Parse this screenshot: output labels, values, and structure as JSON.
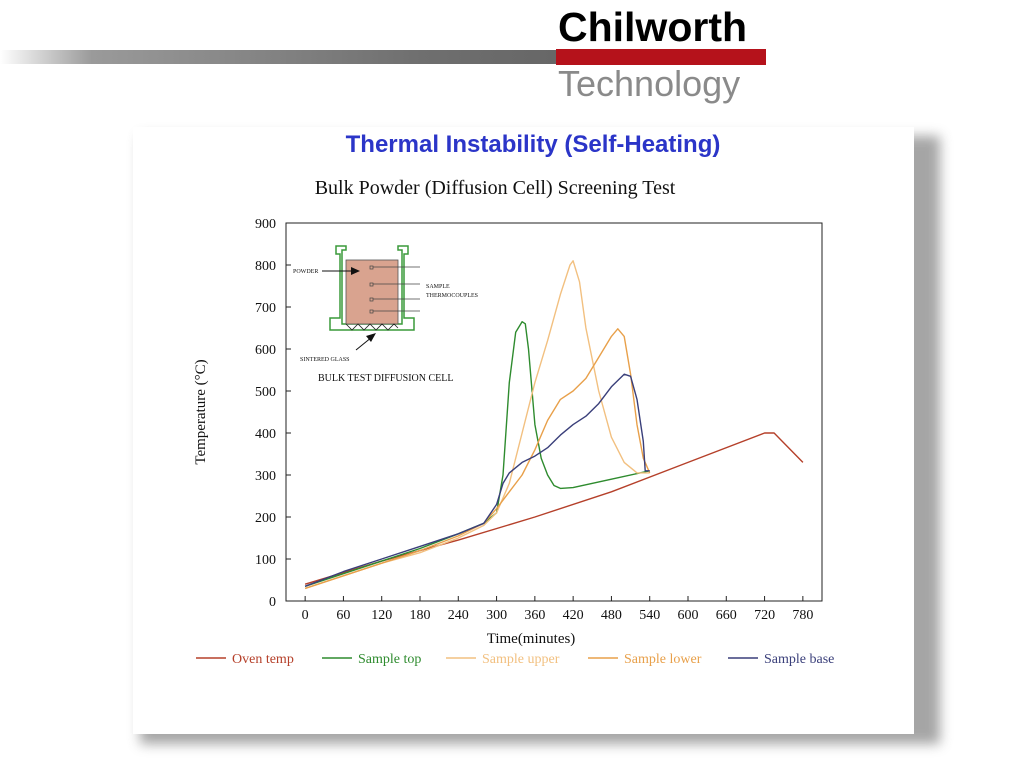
{
  "brand": {
    "name": "Chilworth",
    "sub": "Technology",
    "accent": "#b5121b"
  },
  "slide_title": "Thermal Instability (Self-Heating)",
  "inset": {
    "labels": {
      "powder": "POWDER",
      "sample": "SAMPLE",
      "thermocouples": "THERMOCOUPLES",
      "sintered": "SINTERED GLASS",
      "caption": "BULK TEST DIFFUSION CELL"
    }
  },
  "chart_data": {
    "type": "line",
    "title": "Bulk Powder (Diffusion Cell) Screening Test",
    "xlabel": "Time(minutes)",
    "ylabel": "Temperature (°C)",
    "xlim": [
      -30,
      810
    ],
    "ylim": [
      0,
      900
    ],
    "xticks": [
      0,
      60,
      120,
      180,
      240,
      300,
      360,
      420,
      480,
      540,
      600,
      660,
      720,
      780
    ],
    "yticks": [
      0,
      100,
      200,
      300,
      400,
      500,
      600,
      700,
      800,
      900
    ],
    "legend_position": "bottom",
    "series": [
      {
        "name": "Oven temp",
        "color": "#b5402a",
        "x": [
          0,
          120,
          240,
          360,
          480,
          600,
          720,
          735,
          780
        ],
        "y": [
          40,
          95,
          145,
          200,
          260,
          330,
          400,
          400,
          330
        ]
      },
      {
        "name": "Sample top",
        "color": "#2e8b2e",
        "x": [
          0,
          60,
          120,
          180,
          240,
          280,
          300,
          310,
          320,
          330,
          340,
          345,
          350,
          360,
          370,
          380,
          390,
          400,
          420,
          480,
          540
        ],
        "y": [
          35,
          65,
          95,
          125,
          160,
          185,
          210,
          300,
          520,
          640,
          665,
          660,
          600,
          420,
          340,
          300,
          275,
          268,
          270,
          290,
          310
        ]
      },
      {
        "name": "Sample upper",
        "color": "#f2c080",
        "x": [
          0,
          60,
          120,
          180,
          240,
          280,
          300,
          320,
          340,
          360,
          380,
          400,
          415,
          420,
          430,
          440,
          460,
          480,
          500,
          520,
          540
        ],
        "y": [
          30,
          60,
          90,
          115,
          150,
          180,
          210,
          280,
          400,
          520,
          620,
          730,
          800,
          810,
          760,
          650,
          500,
          390,
          330,
          305,
          305
        ]
      },
      {
        "name": "Sample lower",
        "color": "#e8a04a",
        "x": [
          0,
          60,
          120,
          180,
          240,
          280,
          300,
          320,
          340,
          360,
          380,
          400,
          420,
          440,
          460,
          480,
          490,
          500,
          510,
          520,
          530,
          540
        ],
        "y": [
          30,
          60,
          90,
          120,
          155,
          185,
          220,
          260,
          300,
          360,
          430,
          480,
          500,
          530,
          580,
          630,
          648,
          630,
          540,
          420,
          340,
          305
        ]
      },
      {
        "name": "Sample base",
        "color": "#3a3f7a",
        "x": [
          0,
          60,
          120,
          180,
          240,
          280,
          300,
          310,
          320,
          340,
          360,
          380,
          400,
          420,
          440,
          460,
          480,
          500,
          510,
          520,
          530,
          533,
          540
        ],
        "y": [
          35,
          70,
          100,
          130,
          160,
          185,
          230,
          280,
          305,
          330,
          345,
          365,
          395,
          420,
          440,
          470,
          510,
          540,
          535,
          480,
          380,
          310,
          310
        ]
      }
    ]
  }
}
